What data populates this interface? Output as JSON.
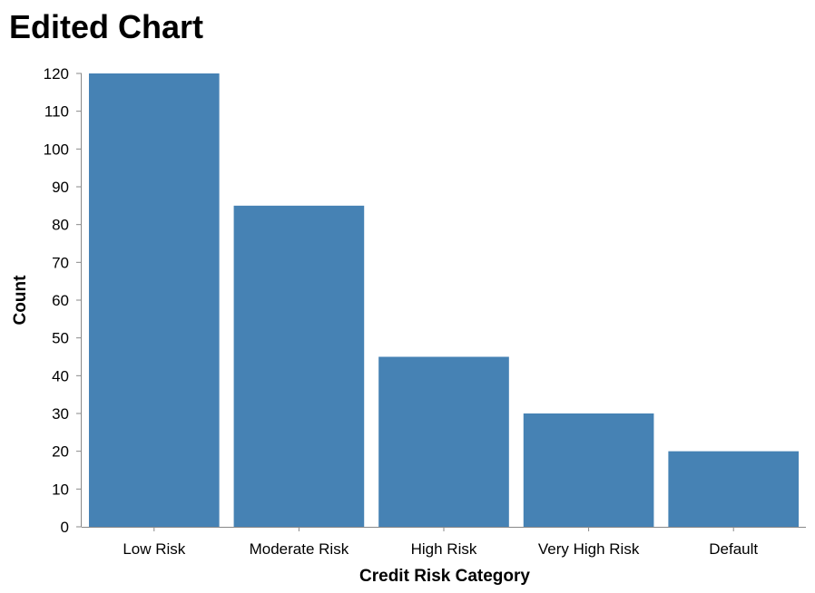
{
  "chart_data": {
    "type": "bar",
    "title": "Edited Chart",
    "xlabel": "Credit Risk Category",
    "ylabel": "Count",
    "categories": [
      "Low Risk",
      "Moderate Risk",
      "High Risk",
      "Very High Risk",
      "Default"
    ],
    "values": [
      120,
      85,
      45,
      30,
      20
    ],
    "ylim": [
      0,
      120
    ],
    "yticks": [
      0,
      10,
      20,
      30,
      40,
      50,
      60,
      70,
      80,
      90,
      100,
      110,
      120
    ],
    "grid": false,
    "colors": {
      "bar": "#4682b4",
      "axis": "#888888",
      "text": "#000000"
    }
  }
}
